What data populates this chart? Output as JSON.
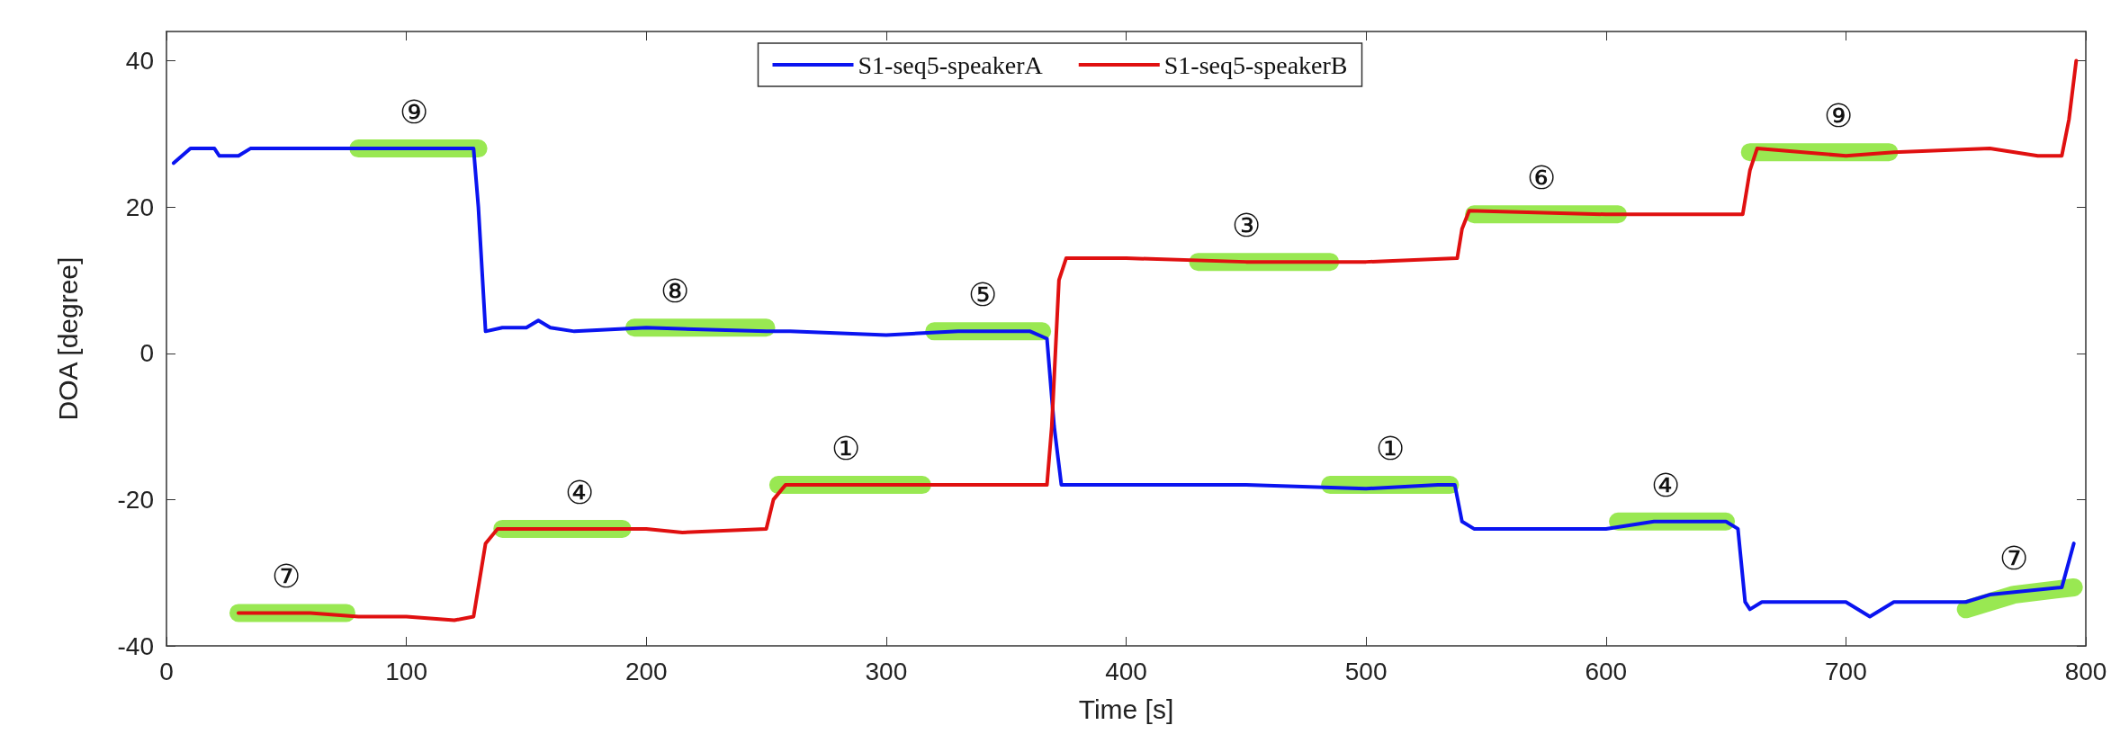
{
  "chart_data": {
    "type": "line",
    "xlabel": "Time [s]",
    "ylabel": "DOA [degree]",
    "xlim": [
      0,
      800
    ],
    "xticks": [
      0,
      100,
      200,
      300,
      400,
      500,
      600,
      700,
      800
    ],
    "ylim": [
      -40,
      44
    ],
    "yticks": [
      -40,
      -20,
      0,
      20,
      40
    ],
    "grid": false,
    "legend": "top",
    "marker": "none",
    "line_style": "solid",
    "series": [
      {
        "color": "#8ee53f",
        "x": [
          80,
          130,
          null,
          195,
          250,
          null,
          320,
          365,
          null,
          30,
          75,
          null,
          140,
          190,
          null,
          255,
          315,
          null,
          430,
          485,
          null,
          545,
          605,
          null,
          660,
          718,
          null,
          485,
          535,
          null,
          605,
          650,
          null,
          750,
          770,
          795
        ],
        "values": [
          28,
          28,
          null,
          3.5,
          3.5,
          null,
          3,
          3,
          null,
          -35.5,
          -35.5,
          null,
          -24,
          -24,
          null,
          -18,
          -18,
          null,
          12.5,
          12.5,
          null,
          19,
          19,
          null,
          27.5,
          27.5,
          null,
          -18,
          -18,
          null,
          -23,
          -23,
          null,
          -35,
          -33,
          -32
        ]
      },
      {
        "name": "S1-seq5-speakerA",
        "color": "#0a14f0",
        "x": [
          3,
          10,
          20,
          22,
          30,
          35,
          60,
          80,
          100,
          128,
          130,
          133,
          140,
          150,
          155,
          160,
          170,
          200,
          250,
          260,
          300,
          330,
          360,
          367,
          370,
          373,
          380,
          400,
          450,
          500,
          530,
          537,
          540,
          545,
          600,
          620,
          650,
          655,
          658,
          660,
          665,
          700,
          710,
          720,
          750,
          760,
          790,
          795
        ],
        "values": [
          26,
          28,
          28,
          27,
          27,
          28,
          28,
          28,
          28,
          28,
          20,
          3,
          3.5,
          3.5,
          4.5,
          3.5,
          3,
          3.5,
          3,
          3,
          2.5,
          3,
          3,
          2,
          -10,
          -18,
          -18,
          -18,
          -18,
          -18.5,
          -18,
          -18,
          -23,
          -24,
          -24,
          -23,
          -23,
          -24,
          -34,
          -35,
          -34,
          -34,
          -36,
          -34,
          -34,
          -33,
          -32,
          -26
        ]
      },
      {
        "name": "S1-seq5-speakerB",
        "color": "#e01010",
        "x": [
          30,
          60,
          80,
          100,
          120,
          128,
          133,
          138,
          200,
          215,
          250,
          253,
          258,
          300,
          367,
          369,
          372,
          375,
          400,
          450,
          500,
          538,
          540,
          543,
          600,
          657,
          660,
          663,
          700,
          720,
          760,
          780,
          790,
          793,
          796
        ],
        "values": [
          -35.5,
          -35.5,
          -36,
          -36,
          -36.5,
          -36,
          -26,
          -24,
          -24,
          -24.5,
          -24,
          -20,
          -18,
          -18,
          -18,
          -10,
          10,
          13,
          13,
          12.5,
          12.5,
          13,
          17,
          19.5,
          19,
          19,
          25,
          28,
          27,
          27.5,
          28,
          27,
          27,
          32,
          40
        ]
      }
    ],
    "annotations": [
      {
        "text": "⑨",
        "x": 103,
        "y": 28
      },
      {
        "text": "⑧",
        "x": 212,
        "y": 3.5
      },
      {
        "text": "⑤",
        "x": 340,
        "y": 3
      },
      {
        "text": "⑦",
        "x": 50,
        "y": -35.5
      },
      {
        "text": "④",
        "x": 172,
        "y": -24
      },
      {
        "text": "①",
        "x": 283,
        "y": -18
      },
      {
        "text": "③",
        "x": 450,
        "y": 12.5
      },
      {
        "text": "⑥",
        "x": 573,
        "y": 19
      },
      {
        "text": "⑨",
        "x": 697,
        "y": 27.5
      },
      {
        "text": "①",
        "x": 510,
        "y": -18
      },
      {
        "text": "④",
        "x": 625,
        "y": -23
      },
      {
        "text": "⑦",
        "x": 770,
        "y": -33
      }
    ]
  }
}
